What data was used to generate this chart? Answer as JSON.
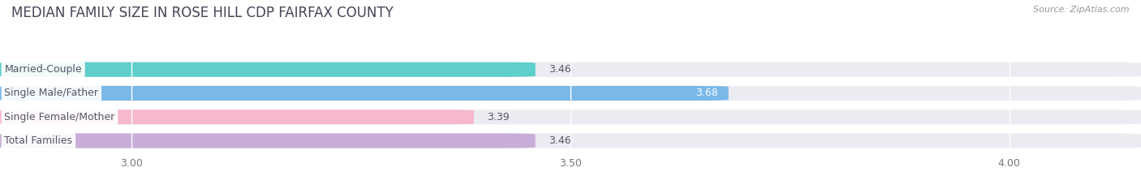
{
  "title": "MEDIAN FAMILY SIZE IN ROSE HILL CDP FAIRFAX COUNTY",
  "source": "Source: ZipAtlas.com",
  "categories": [
    "Married-Couple",
    "Single Male/Father",
    "Single Female/Mother",
    "Total Families"
  ],
  "values": [
    3.46,
    3.68,
    3.39,
    3.46
  ],
  "bar_colors": [
    "#5ecfca",
    "#7ab8e8",
    "#f5b8ce",
    "#c8add8"
  ],
  "label_text_color": "#555566",
  "value_colors": [
    "#555566",
    "#ffffff",
    "#555566",
    "#555566"
  ],
  "xlim_data": [
    2.85,
    4.15
  ],
  "xticks": [
    3.0,
    3.5,
    4.0
  ],
  "xtick_labels": [
    "3.00",
    "3.50",
    "4.00"
  ],
  "bar_height": 0.62,
  "background_color": "#ffffff",
  "bar_bg_color": "#ebebf2",
  "title_fontsize": 12,
  "tick_fontsize": 9,
  "label_fontsize": 9,
  "value_fontsize": 9
}
